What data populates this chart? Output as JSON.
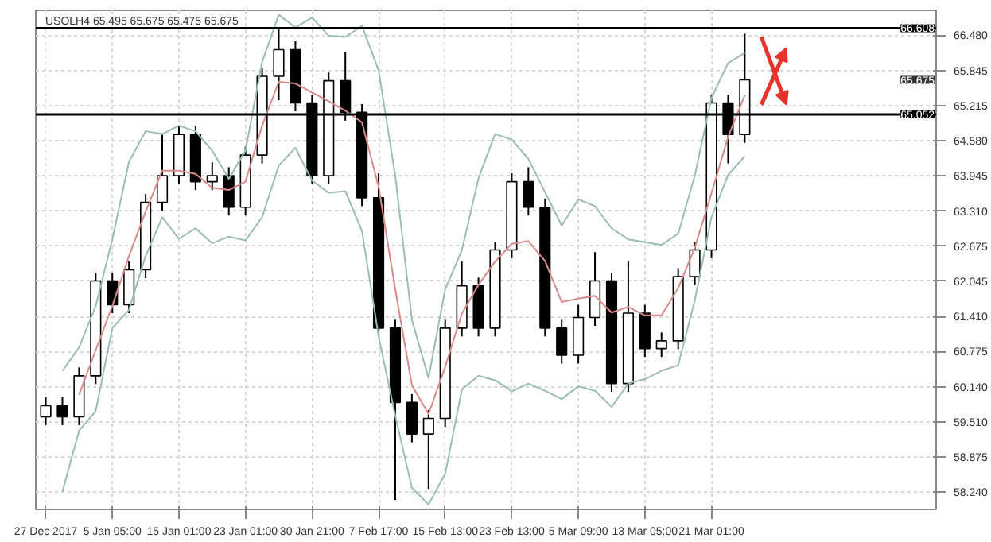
{
  "chart_data": {
    "type": "candlestick",
    "title": "USOLH4 65.495 65.675 65.475 65.675",
    "categories": [
      "27 Dec 2017",
      null,
      null,
      null,
      "5 Jan 05:00",
      null,
      null,
      null,
      "15 Jan 01:00",
      null,
      null,
      null,
      "23 Jan 01:00",
      null,
      null,
      null,
      "30 Jan 21:00",
      null,
      null,
      null,
      "7 Feb 17:00",
      null,
      null,
      null,
      "15 Feb 13:00",
      null,
      null,
      null,
      "23 Feb 13:00",
      null,
      null,
      null,
      "5 Mar 09:00",
      null,
      null,
      null,
      "13 Mar 05:00",
      null,
      null,
      null,
      "21 Mar 01:00",
      null,
      null,
      null,
      null,
      null,
      null,
      null,
      null,
      null,
      null,
      null,
      null,
      null
    ],
    "ohlc": [
      [
        59.6,
        59.95,
        59.45,
        59.8
      ],
      [
        59.8,
        59.95,
        59.45,
        59.6
      ],
      [
        59.6,
        60.49,
        59.45,
        60.34
      ],
      [
        60.34,
        62.2,
        60.19,
        62.05
      ],
      [
        62.05,
        62.2,
        61.47,
        61.62
      ],
      [
        61.62,
        62.4,
        61.47,
        62.25
      ],
      [
        62.25,
        63.62,
        62.1,
        63.47
      ],
      [
        63.47,
        64.69,
        63.32,
        63.95
      ],
      [
        63.95,
        64.84,
        63.8,
        64.69
      ],
      [
        64.69,
        64.84,
        63.69,
        63.84
      ],
      [
        63.84,
        64.19,
        63.69,
        63.95
      ],
      [
        63.95,
        64.1,
        63.23,
        63.38
      ],
      [
        63.38,
        64.47,
        63.23,
        64.32
      ],
      [
        64.32,
        65.89,
        64.17,
        65.74
      ],
      [
        65.74,
        66.6,
        65.31,
        66.22
      ],
      [
        66.22,
        66.37,
        65.11,
        65.26
      ],
      [
        65.26,
        65.41,
        63.8,
        63.95
      ],
      [
        63.95,
        65.81,
        63.8,
        65.66
      ],
      [
        65.66,
        66.18,
        64.94,
        65.09
      ],
      [
        65.09,
        65.24,
        63.4,
        63.55
      ],
      [
        63.55,
        63.99,
        61.05,
        61.2
      ],
      [
        61.2,
        61.35,
        58.1,
        59.86
      ],
      [
        59.86,
        60.01,
        59.14,
        59.29
      ],
      [
        59.29,
        59.72,
        58.3,
        59.57
      ],
      [
        59.57,
        61.35,
        59.42,
        61.2
      ],
      [
        61.2,
        62.4,
        61.05,
        61.96
      ],
      [
        61.96,
        62.11,
        61.05,
        61.2
      ],
      [
        61.2,
        62.76,
        61.05,
        62.61
      ],
      [
        62.61,
        63.99,
        62.46,
        63.84
      ],
      [
        63.84,
        64.1,
        63.23,
        63.38
      ],
      [
        63.38,
        63.53,
        61.05,
        61.2
      ],
      [
        61.2,
        61.35,
        60.56,
        60.71
      ],
      [
        60.71,
        61.62,
        60.56,
        61.39
      ],
      [
        61.39,
        62.57,
        61.24,
        62.05
      ],
      [
        62.05,
        62.2,
        60.05,
        60.2
      ],
      [
        60.2,
        62.4,
        60.05,
        61.47
      ],
      [
        61.47,
        61.62,
        60.68,
        60.83
      ],
      [
        60.83,
        61.12,
        60.68,
        60.97
      ],
      [
        60.97,
        62.28,
        60.82,
        62.13
      ],
      [
        62.13,
        62.76,
        61.98,
        62.61
      ],
      [
        62.61,
        65.41,
        62.46,
        65.26
      ],
      [
        65.26,
        65.41,
        64.17,
        64.69
      ],
      [
        64.69,
        66.51,
        64.54,
        65.675
      ],
      null,
      null,
      null,
      null,
      null,
      null,
      null,
      null,
      null,
      null,
      null
    ],
    "color": "#000000",
    "series": [
      {
        "type": "line",
        "color": "#9dbdb3",
        "values": [
          null,
          60.43,
          60.85,
          61.6,
          62.8,
          64.2,
          64.75,
          64.7,
          64.85,
          64.75,
          64.4,
          63.89,
          64.4,
          66.0,
          66.85,
          66.62,
          66.8,
          66.47,
          66.45,
          66.65,
          65.85,
          63.95,
          61.35,
          60.3,
          61.9,
          62.6,
          63.9,
          64.7,
          64.6,
          64.25,
          63.65,
          63.05,
          63.52,
          63.4,
          63.0,
          62.8,
          62.75,
          62.7,
          62.9,
          63.95,
          65.35,
          65.98,
          66.16,
          null,
          null,
          null,
          null,
          null,
          null,
          null,
          null,
          null,
          null,
          null
        ]
      },
      {
        "type": "line",
        "color": "#d98a8a",
        "values": [
          null,
          null,
          60.0,
          60.8,
          61.6,
          62.5,
          63.3,
          64.04,
          64.04,
          63.98,
          63.73,
          63.69,
          63.84,
          64.85,
          65.64,
          65.61,
          65.45,
          65.29,
          65.12,
          64.91,
          63.75,
          61.9,
          60.17,
          59.65,
          60.5,
          61.46,
          61.98,
          62.4,
          62.72,
          62.77,
          62.41,
          61.67,
          61.73,
          61.78,
          61.48,
          61.58,
          61.43,
          61.43,
          61.92,
          62.65,
          63.63,
          64.65,
          65.4,
          null,
          null,
          null,
          null,
          null,
          null,
          null,
          null,
          null,
          null,
          null
        ]
      },
      {
        "type": "line",
        "color": "#9dbdb3",
        "values": [
          null,
          58.25,
          59.35,
          59.7,
          61.2,
          61.53,
          62.5,
          63.2,
          62.81,
          63.0,
          62.73,
          62.85,
          62.78,
          63.2,
          64.13,
          64.45,
          63.86,
          63.64,
          63.67,
          62.95,
          61.05,
          59.62,
          58.32,
          58.02,
          58.57,
          60.09,
          60.34,
          60.26,
          60.06,
          60.2,
          60.07,
          59.92,
          60.15,
          60.07,
          59.78,
          60.2,
          60.28,
          60.43,
          60.53,
          61.7,
          63.2,
          63.96,
          64.3,
          null,
          null,
          null,
          null,
          null,
          null,
          null,
          null,
          null,
          null,
          null
        ]
      }
    ],
    "ylim": [
      57.93,
      66.93
    ],
    "yticks": [
      {
        "value": 66.48,
        "label": "66.480"
      },
      65.845,
      65.215,
      {
        "value": 64.58,
        "label": "64.580"
      },
      63.945,
      {
        "value": 63.31,
        "label": "63.310"
      },
      62.675,
      62.045,
      {
        "value": 61.41,
        "label": "61.410"
      },
      60.775,
      {
        "value": 60.14,
        "label": "60.140"
      },
      {
        "value": 59.51,
        "label": "59.510"
      },
      58.875,
      {
        "value": 58.24,
        "label": "58.240"
      }
    ],
    "ref_lines": [
      {
        "axis": "y",
        "value": 66.608,
        "label": "66.608",
        "color": "#000000"
      },
      {
        "axis": "y",
        "value": 65.052,
        "label": "65.052",
        "color": "#000000"
      }
    ],
    "annotations": [
      "65.675"
    ],
    "grid": true
  }
}
